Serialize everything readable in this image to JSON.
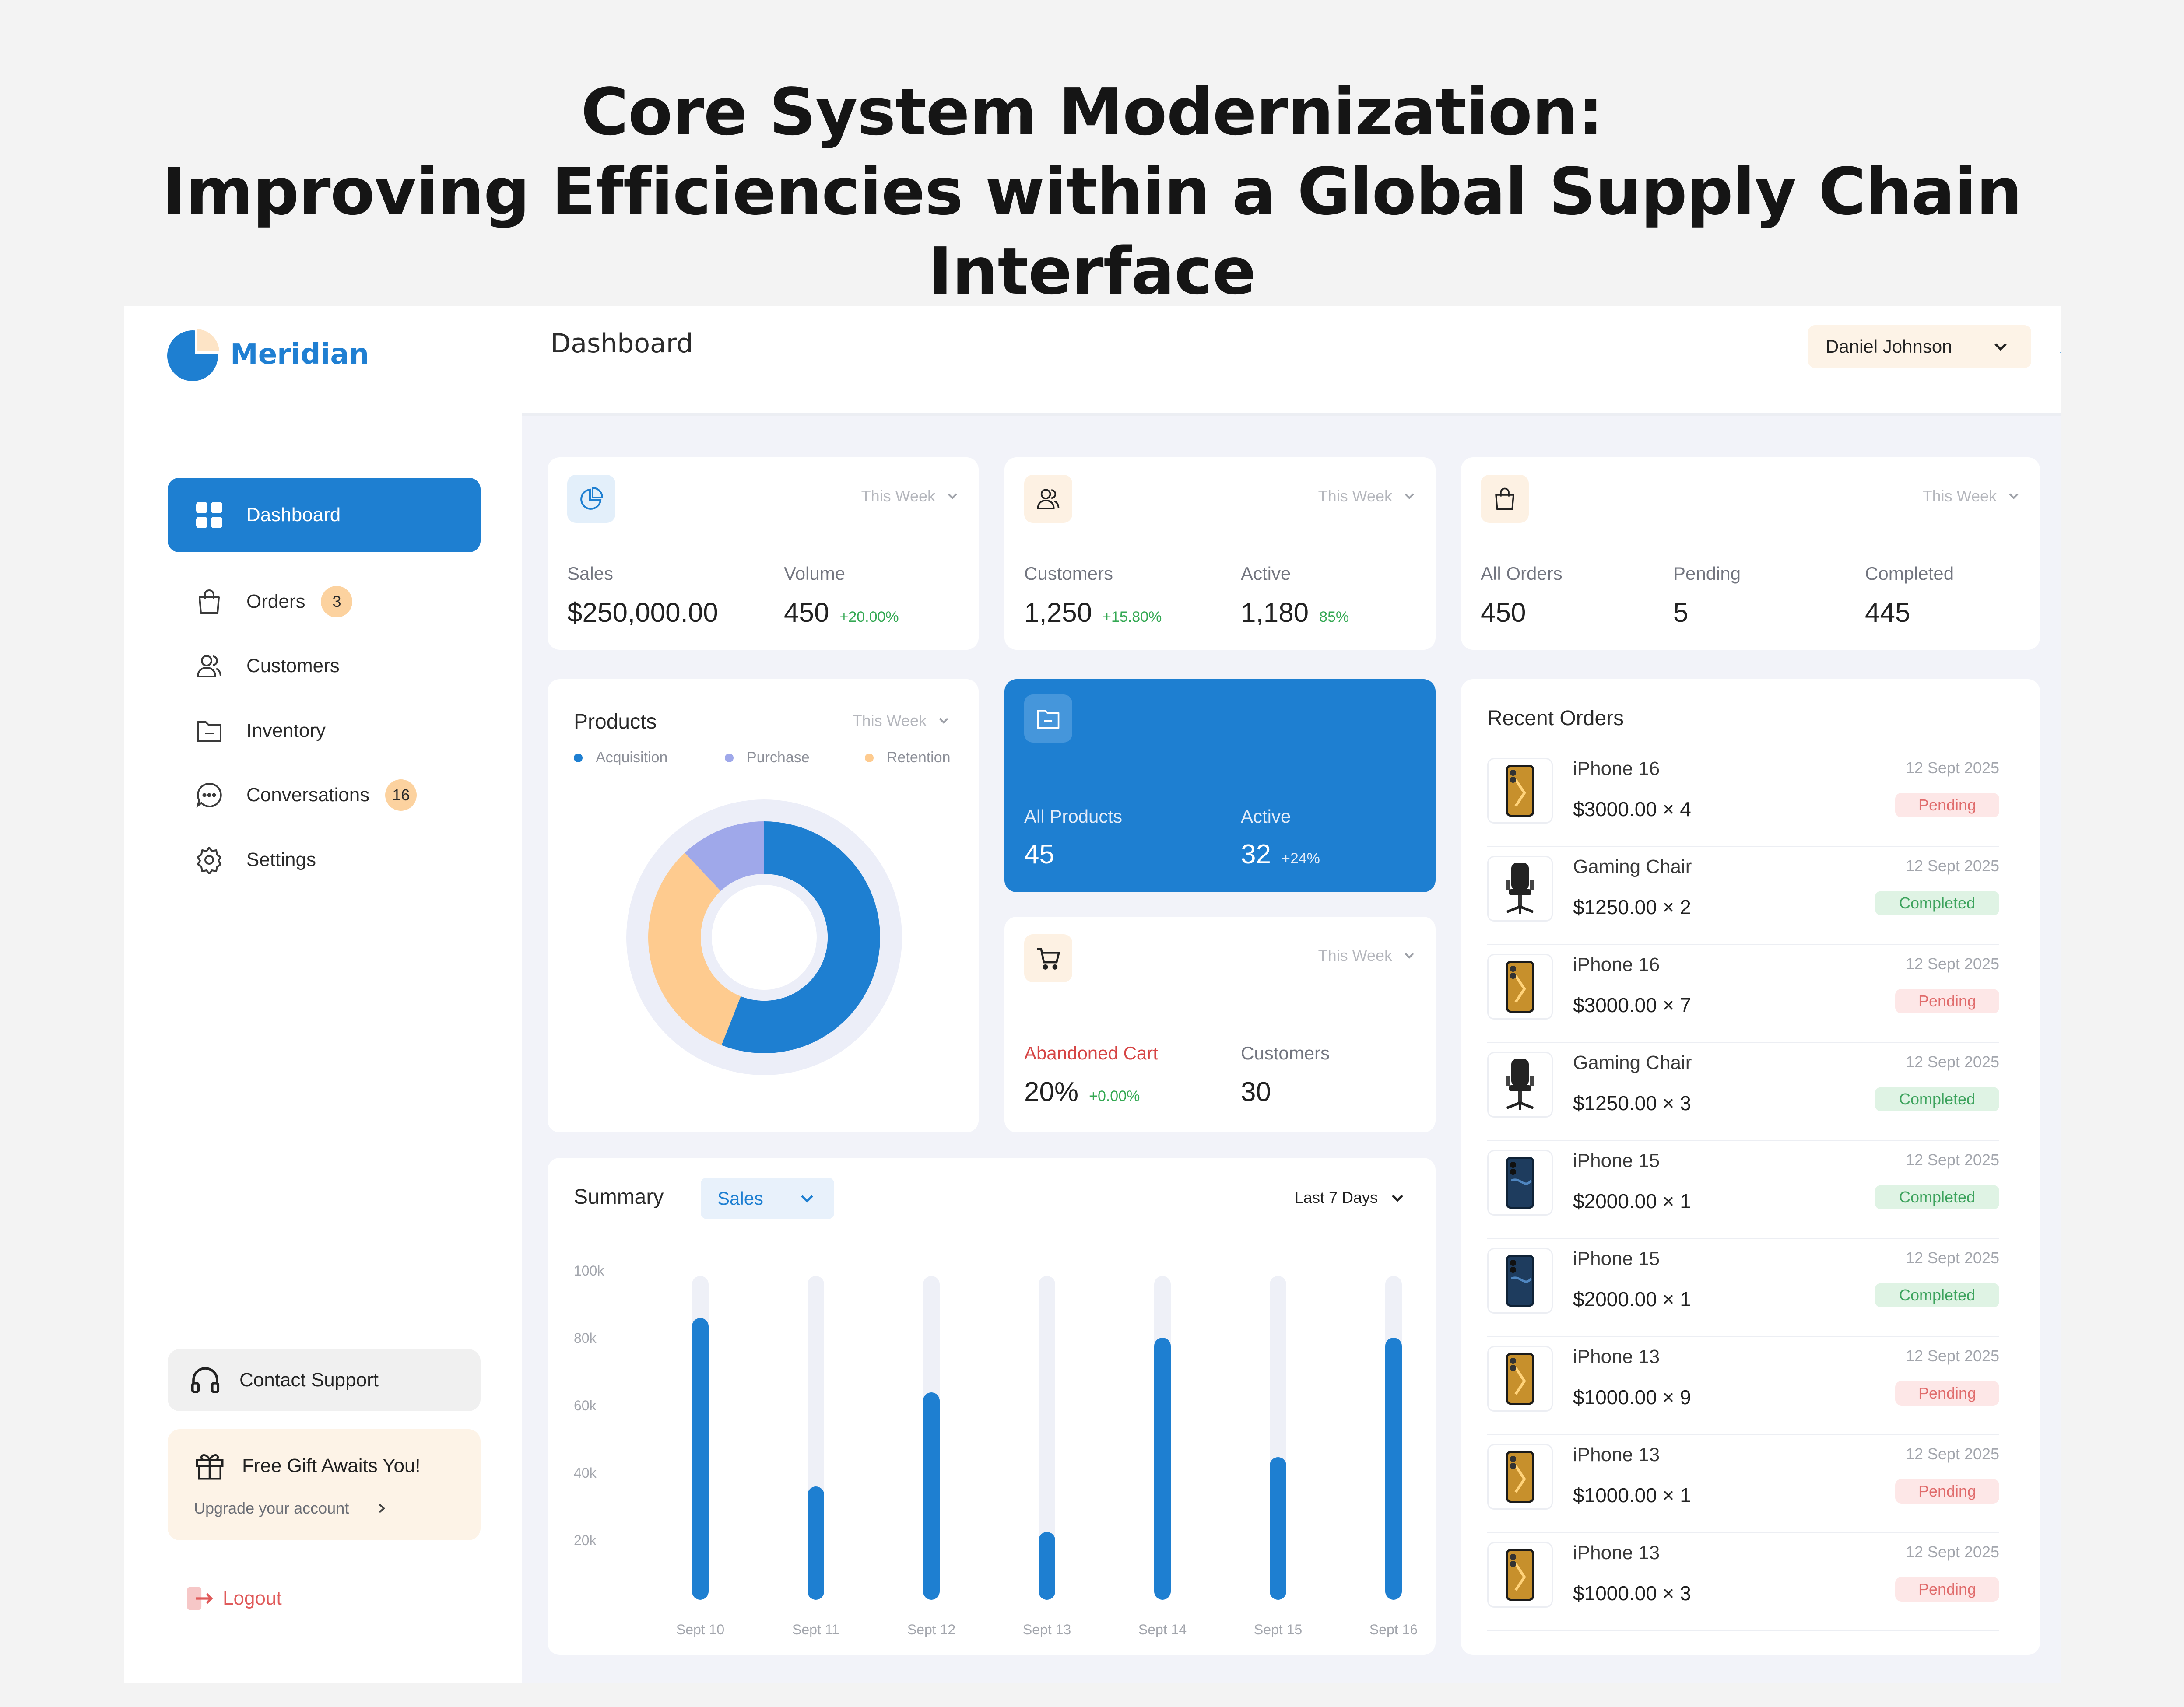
{
  "headline": {
    "line1": "Core System Modernization:",
    "line2": "Improving Efficiencies within a Global Supply Chain Interface"
  },
  "brand": {
    "name": "Meridian",
    "accent": "#1e7fd1"
  },
  "sidebar": {
    "items": [
      {
        "label": "Dashboard",
        "icon": "grid-icon",
        "active": true
      },
      {
        "label": "Orders",
        "icon": "shopping-bag-icon",
        "badge": "3"
      },
      {
        "label": "Customers",
        "icon": "users-icon"
      },
      {
        "label": "Inventory",
        "icon": "folder-icon"
      },
      {
        "label": "Conversations",
        "icon": "chat-icon",
        "badge": "16"
      },
      {
        "label": "Settings",
        "icon": "gear-icon"
      }
    ],
    "contact_support": "Contact Support",
    "gift": {
      "title": "Free Gift Awaits You!",
      "subtitle": "Upgrade your account"
    },
    "logout": "Logout"
  },
  "topbar": {
    "title": "Dashboard",
    "user": "Daniel Johnson"
  },
  "stats": {
    "sales_card": {
      "period": "This Week",
      "sales_label": "Sales",
      "sales_value": "$250,000.00",
      "volume_label": "Volume",
      "volume_value": "450",
      "volume_delta": "+20.00%"
    },
    "customers_card": {
      "period": "This Week",
      "customers_label": "Customers",
      "customers_value": "1,250",
      "customers_delta": "+15.80%",
      "active_label": "Active",
      "active_value": "1,180",
      "active_delta": "85%"
    },
    "orders_card": {
      "period": "This Week",
      "all_label": "All Orders",
      "all_value": "450",
      "pending_label": "Pending",
      "pending_value": "5",
      "completed_label": "Completed",
      "completed_value": "445"
    }
  },
  "products": {
    "title": "Products",
    "period": "This Week",
    "legend": [
      {
        "label": "Acquisition",
        "color": "#1e7fd1"
      },
      {
        "label": "Purchase",
        "color": "#9fa8ea"
      },
      {
        "label": "Retention",
        "color": "#fecb8f"
      }
    ],
    "donut": [
      {
        "name": "Acquisition",
        "value": 56
      },
      {
        "name": "Retention",
        "value": 32
      },
      {
        "name": "Purchase",
        "value": 12
      }
    ]
  },
  "all_products": {
    "all_label": "All Products",
    "all_value": "45",
    "active_label": "Active",
    "active_value": "32",
    "active_delta": "+24%"
  },
  "cart": {
    "period": "This Week",
    "abandoned_label": "Abandoned Cart",
    "abandoned_value": "20%",
    "abandoned_delta": "+0.00%",
    "customers_label": "Customers",
    "customers_value": "30"
  },
  "summary": {
    "title": "Summary",
    "select": "Sales",
    "range": "Last 7 Days"
  },
  "chart_data": {
    "type": "bar",
    "categories": [
      "Sept 10",
      "Sept 11",
      "Sept 12",
      "Sept 13",
      "Sept 14",
      "Sept 15",
      "Sept 16"
    ],
    "values": [
      87,
      35,
      64,
      21,
      81,
      44,
      81
    ],
    "yticks": [
      "100k",
      "80k",
      "60k",
      "40k",
      "20k"
    ],
    "ylim": [
      0,
      100
    ],
    "bar_color": "#1e7fd1",
    "track_color": "#eef0f7",
    "grid": false
  },
  "recent_orders": {
    "title": "Recent Orders",
    "items": [
      {
        "name": "iPhone 16",
        "price": "$3000.00 × 4",
        "date": "12 Sept 2025",
        "status": "Pending",
        "thumb": "phone-gold-icon"
      },
      {
        "name": "Gaming Chair",
        "price": "$1250.00 × 2",
        "date": "12 Sept 2025",
        "status": "Completed",
        "thumb": "chair-icon"
      },
      {
        "name": "iPhone 16",
        "price": "$3000.00 × 7",
        "date": "12 Sept 2025",
        "status": "Pending",
        "thumb": "phone-gold-icon"
      },
      {
        "name": "Gaming Chair",
        "price": "$1250.00 × 3",
        "date": "12 Sept 2025",
        "status": "Completed",
        "thumb": "chair-icon"
      },
      {
        "name": "iPhone 15",
        "price": "$2000.00 × 1",
        "date": "12 Sept 2025",
        "status": "Completed",
        "thumb": "phone-blue-icon"
      },
      {
        "name": "iPhone 15",
        "price": "$2000.00 × 1",
        "date": "12 Sept 2025",
        "status": "Completed",
        "thumb": "phone-blue-icon"
      },
      {
        "name": "iPhone 13",
        "price": "$1000.00 × 9",
        "date": "12 Sept 2025",
        "status": "Pending",
        "thumb": "phone-gold-icon"
      },
      {
        "name": "iPhone 13",
        "price": "$1000.00 × 1",
        "date": "12 Sept 2025",
        "status": "Pending",
        "thumb": "phone-gold-icon"
      },
      {
        "name": "iPhone 13",
        "price": "$1000.00 × 3",
        "date": "12 Sept 2025",
        "status": "Pending",
        "thumb": "phone-gold-icon"
      }
    ]
  }
}
